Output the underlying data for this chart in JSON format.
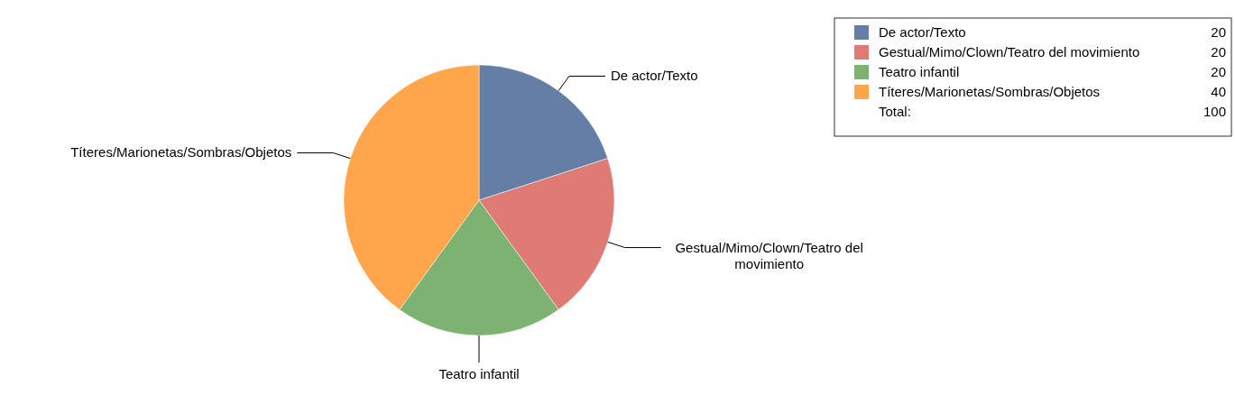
{
  "chart_data": {
    "type": "pie",
    "categories": [
      "De actor/Texto",
      "Gestual/Mimo/Clown/Teatro del movimiento",
      "Teatro infantil",
      "Títeres/Marionetas/Sombras/Objetos"
    ],
    "values": [
      20,
      20,
      20,
      40
    ],
    "colors": [
      "#657ea6",
      "#e07a74",
      "#7db272",
      "#ffa64d"
    ],
    "value_labels": [
      "20",
      "20",
      "20",
      "40"
    ],
    "totals": [
      "100"
    ],
    "annotations": [
      "Total:"
    ],
    "legend": "top right"
  }
}
